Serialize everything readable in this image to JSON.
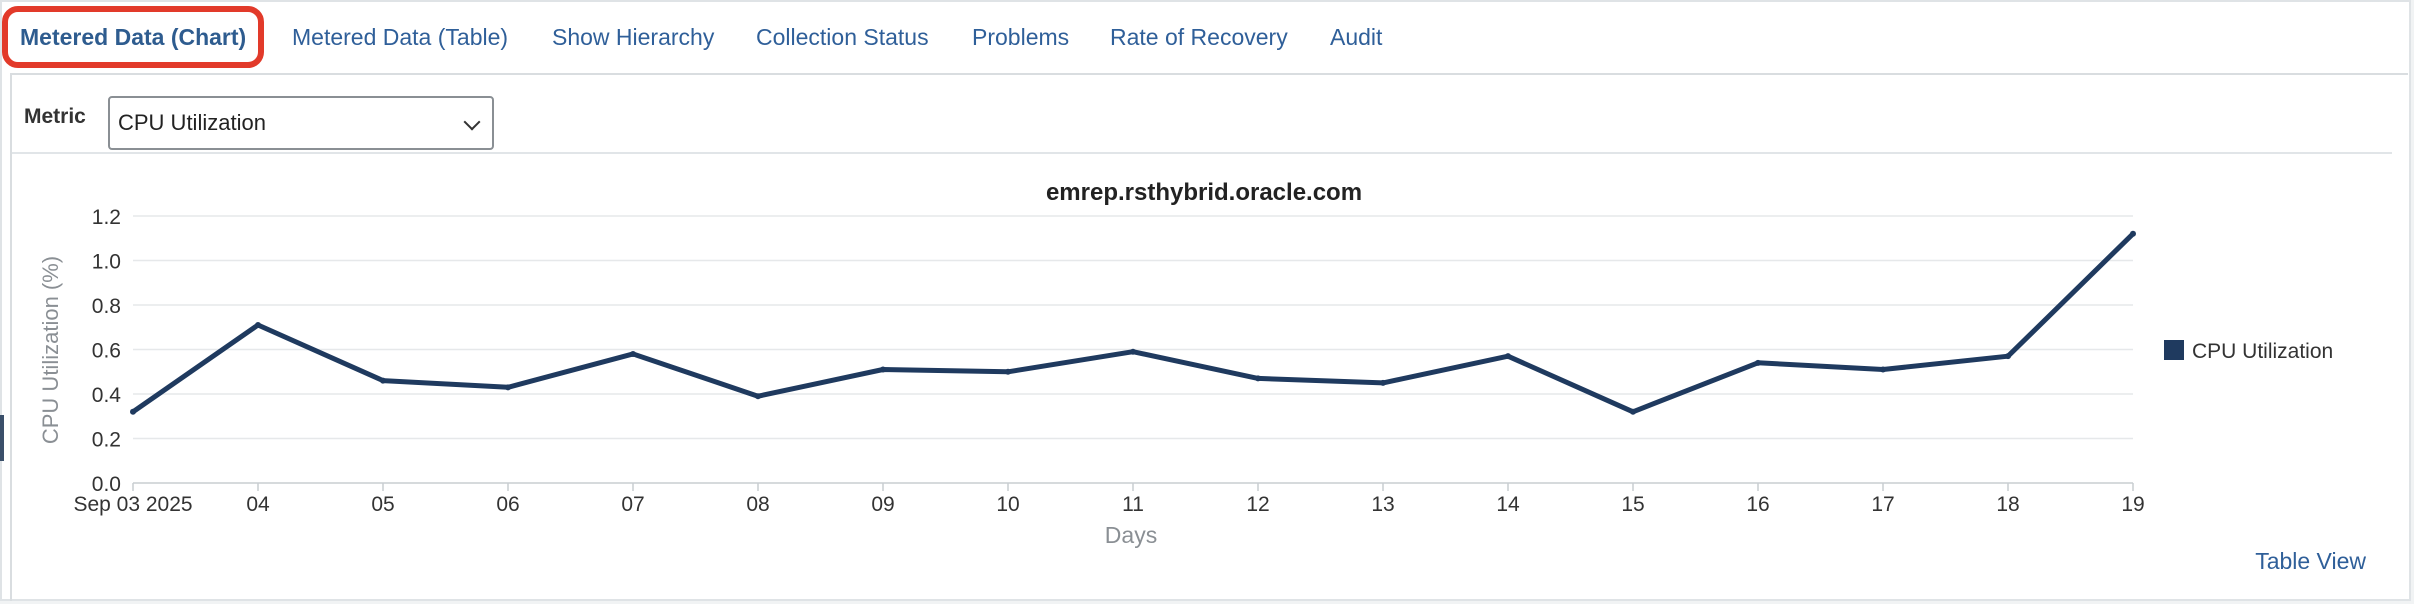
{
  "tabs": [
    {
      "label": "Metered Data (Chart)",
      "active": true
    },
    {
      "label": "Metered Data (Table)",
      "active": false
    },
    {
      "label": "Show Hierarchy",
      "active": false
    },
    {
      "label": "Collection Status",
      "active": false
    },
    {
      "label": "Problems",
      "active": false
    },
    {
      "label": "Rate of Recovery",
      "active": false
    },
    {
      "label": "Audit",
      "active": false
    }
  ],
  "metric": {
    "label": "Metric",
    "selected": "CPU Utilization"
  },
  "links": {
    "table_view": "Table View"
  },
  "colors": {
    "series": "#1f3a5f",
    "accent_outline": "#e23a2a",
    "link": "#2f5f99"
  },
  "chart_data": {
    "type": "line",
    "title": "emrep.rsthybrid.oracle.com",
    "xlabel": "Days",
    "ylabel": "CPU Utilization (%)",
    "ylim": [
      0,
      1.2
    ],
    "yticks": [
      "0.0",
      "0.2",
      "0.4",
      "0.6",
      "0.8",
      "1.0",
      "1.2"
    ],
    "categories": [
      "Sep 03 2025",
      "04",
      "05",
      "06",
      "07",
      "08",
      "09",
      "10",
      "11",
      "12",
      "13",
      "14",
      "15",
      "16",
      "17",
      "18",
      "19"
    ],
    "series": [
      {
        "name": "CPU Utilization",
        "values": [
          0.32,
          0.71,
          0.46,
          0.43,
          0.58,
          0.39,
          0.51,
          0.5,
          0.59,
          0.47,
          0.45,
          0.57,
          0.32,
          0.54,
          0.51,
          0.57,
          1.12
        ]
      }
    ],
    "grid": true,
    "legend": "right"
  }
}
